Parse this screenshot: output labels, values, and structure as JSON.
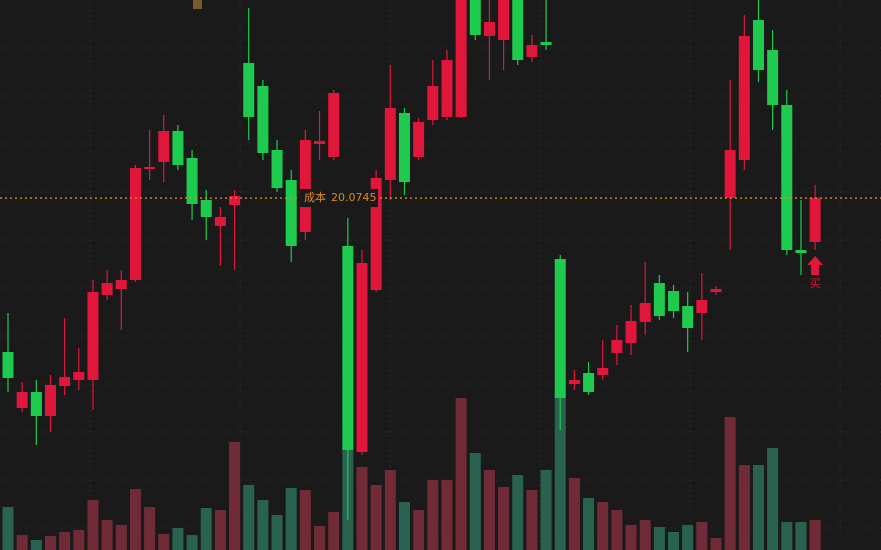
{
  "chart_data": {
    "type": "candlestick",
    "open": [
      18.535,
      17.975,
      18.135,
      17.895,
      18.195,
      18.255,
      18.255,
      19.105,
      19.165,
      19.255,
      20.365,
      20.435,
      20.745,
      20.475,
      20.055,
      19.795,
      20.005,
      21.425,
      21.195,
      20.555,
      20.255,
      19.735,
      20.615,
      20.485,
      19.595,
      17.535,
      19.155,
      20.255,
      20.925,
      20.485,
      20.855,
      20.885,
      20.885,
      22.105,
      21.695,
      21.655,
      22.105,
      21.485,
      21.635,
      19.465,
      18.215,
      18.325,
      18.305,
      18.525,
      18.625,
      18.835,
      19.225,
      19.145,
      18.995,
      18.925,
      19.135,
      20.075,
      20.455,
      21.855,
      21.555,
      21.005,
      19.555,
      19.635
    ],
    "high": [
      18.925,
      18.235,
      18.255,
      18.305,
      18.875,
      18.575,
      19.255,
      19.355,
      19.355,
      20.405,
      20.755,
      20.905,
      20.805,
      20.555,
      20.155,
      19.985,
      20.155,
      21.975,
      21.255,
      20.655,
      20.355,
      20.755,
      20.945,
      21.155,
      19.875,
      19.555,
      20.355,
      21.405,
      20.975,
      20.875,
      21.455,
      21.555,
      22.155,
      22.155,
      22.155,
      22.155,
      22.155,
      21.705,
      22.055,
      19.505,
      18.355,
      18.435,
      18.655,
      18.805,
      19.005,
      19.435,
      19.305,
      19.205,
      19.135,
      19.325,
      19.195,
      21.255,
      21.905,
      22.055,
      21.755,
      21.155,
      20.055,
      20.205
    ],
    "low": [
      18.135,
      17.935,
      17.605,
      17.735,
      18.105,
      18.155,
      17.955,
      19.055,
      18.755,
      19.235,
      20.255,
      20.235,
      20.355,
      19.855,
      19.655,
      19.395,
      19.355,
      20.655,
      20.455,
      20.135,
      19.435,
      19.655,
      20.455,
      20.455,
      16.855,
      17.505,
      19.135,
      20.055,
      20.105,
      20.455,
      20.805,
      20.855,
      20.875,
      21.655,
      21.255,
      21.355,
      21.405,
      21.435,
      21.555,
      17.755,
      18.155,
      18.105,
      18.255,
      18.405,
      18.505,
      18.705,
      18.855,
      18.875,
      18.535,
      18.655,
      19.105,
      19.555,
      20.355,
      21.235,
      20.755,
      19.505,
      19.305,
      19.555
    ],
    "close": [
      18.275,
      18.135,
      17.895,
      18.205,
      18.285,
      18.335,
      19.135,
      19.225,
      19.255,
      20.375,
      20.385,
      20.745,
      20.405,
      20.015,
      19.885,
      19.885,
      20.095,
      20.885,
      20.525,
      20.175,
      19.595,
      20.655,
      20.645,
      21.125,
      17.555,
      19.425,
      20.275,
      20.975,
      20.235,
      20.835,
      21.195,
      21.455,
      22.105,
      21.705,
      21.835,
      22.105,
      21.455,
      21.605,
      21.605,
      18.075,
      18.255,
      18.135,
      18.375,
      18.655,
      18.845,
      19.025,
      18.895,
      18.945,
      18.775,
      19.055,
      19.165,
      20.555,
      21.695,
      21.355,
      21.005,
      19.555,
      19.525,
      20.075
    ],
    "volume": [
      43,
      15,
      10,
      14,
      18,
      20,
      50,
      30,
      25,
      61,
      43,
      16,
      22,
      15,
      42,
      40,
      108,
      65,
      50,
      35,
      62,
      60,
      24,
      38,
      100,
      83,
      65,
      80,
      48,
      40,
      70,
      70,
      152,
      97,
      80,
      63,
      75,
      60,
      80,
      152,
      72,
      52,
      48,
      40,
      25,
      30,
      23,
      18,
      25,
      28,
      12,
      133,
      85,
      85,
      102,
      28,
      28,
      30
    ],
    "ylim": [
      16.555,
      22.055
    ],
    "y2lim": [
      0,
      550
    ],
    "up_color": "#e0173b",
    "down_color": "#1ecb4f",
    "up_volume_color": "#7a2e3b",
    "down_volume_color": "#2b6b57",
    "cost_label": "成本",
    "cost_value": 20.0745,
    "cost_color": "#e08a1e",
    "buy_label": "买"
  }
}
